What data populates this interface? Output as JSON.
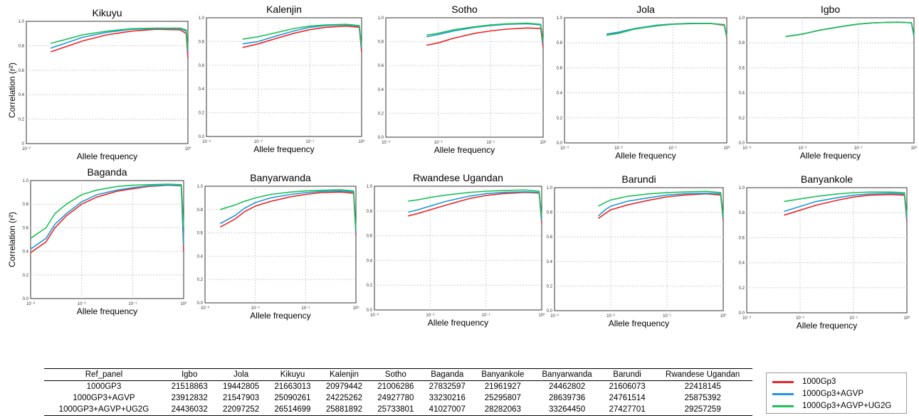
{
  "figure": {
    "y_label": "Correlation (r²)",
    "x_label": "Allele frequency"
  },
  "colors": {
    "1000Gp3": "#e8262a",
    "1000Gp3+AGVP": "#1f9ad6",
    "1000Gp3+AGVP+UG2G": "#1fbf5a"
  },
  "chart_data": [
    {
      "type": "line",
      "title": "Kikuyu",
      "xscale": "log",
      "xlim": [
        0.01,
        1
      ],
      "ylim": [
        0,
        1
      ],
      "x_ticks": [
        "10⁻²",
        "10⁰"
      ],
      "y_ticks": [
        "0",
        "0.2",
        "0.4",
        "0.6",
        "0.8",
        "1.0"
      ],
      "x": [
        0.02,
        0.03,
        0.05,
        0.1,
        0.2,
        0.4,
        0.8,
        0.95,
        1.0
      ],
      "series": [
        {
          "name": "1000Gp3",
          "values": [
            0.75,
            0.79,
            0.84,
            0.89,
            0.92,
            0.935,
            0.93,
            0.9,
            0.7
          ]
        },
        {
          "name": "1000Gp3+AGVP",
          "values": [
            0.78,
            0.82,
            0.87,
            0.91,
            0.935,
            0.94,
            0.94,
            0.92,
            0.75
          ]
        },
        {
          "name": "1000Gp3+AGVP+UG2G",
          "values": [
            0.82,
            0.85,
            0.89,
            0.92,
            0.94,
            0.945,
            0.945,
            0.93,
            0.78
          ]
        }
      ]
    },
    {
      "type": "line",
      "title": "Kalenjin",
      "xscale": "log",
      "xlim": [
        0.001,
        1
      ],
      "ylim": [
        0,
        1
      ],
      "x_ticks": [
        "10⁻³",
        "10⁻²",
        "10⁻¹",
        "10⁰"
      ],
      "y_ticks": [
        "0.0",
        "0.2",
        "0.4",
        "0.6",
        "0.8",
        "1.0"
      ],
      "x": [
        0.005,
        0.01,
        0.02,
        0.05,
        0.1,
        0.2,
        0.5,
        0.9,
        1.0
      ],
      "series": [
        {
          "name": "1000Gp3",
          "values": [
            0.75,
            0.78,
            0.82,
            0.87,
            0.9,
            0.92,
            0.93,
            0.92,
            0.71
          ]
        },
        {
          "name": "1000Gp3+AGVP",
          "values": [
            0.78,
            0.8,
            0.84,
            0.89,
            0.92,
            0.935,
            0.94,
            0.93,
            0.74
          ]
        },
        {
          "name": "1000Gp3+AGVP+UG2G",
          "values": [
            0.82,
            0.84,
            0.87,
            0.91,
            0.93,
            0.94,
            0.945,
            0.935,
            0.76
          ]
        }
      ]
    },
    {
      "type": "line",
      "title": "Sotho",
      "xscale": "log",
      "xlim": [
        0.001,
        1
      ],
      "ylim": [
        0,
        1
      ],
      "x_ticks": [
        "10⁻³",
        "10⁻²",
        "10⁻¹",
        "10⁰"
      ],
      "y_ticks": [
        "0.0",
        "0.2",
        "0.4",
        "0.6",
        "0.8",
        "1.0"
      ],
      "x": [
        0.006,
        0.01,
        0.02,
        0.05,
        0.1,
        0.2,
        0.5,
        0.9,
        1.0
      ],
      "series": [
        {
          "name": "1000Gp3",
          "values": [
            0.77,
            0.79,
            0.83,
            0.87,
            0.89,
            0.905,
            0.915,
            0.91,
            0.75
          ]
        },
        {
          "name": "1000Gp3+AGVP",
          "values": [
            0.84,
            0.86,
            0.89,
            0.92,
            0.935,
            0.945,
            0.95,
            0.94,
            0.78
          ]
        },
        {
          "name": "1000Gp3+AGVP+UG2G",
          "values": [
            0.855,
            0.87,
            0.9,
            0.925,
            0.94,
            0.95,
            0.955,
            0.945,
            0.8
          ]
        }
      ]
    },
    {
      "type": "line",
      "title": "Jola",
      "xscale": "log",
      "xlim": [
        0.001,
        1
      ],
      "ylim": [
        0,
        1
      ],
      "x_ticks": [
        "10⁻³",
        "10⁻²",
        "10⁻¹",
        "10⁰"
      ],
      "y_ticks": [
        "0.0",
        "0.2",
        "0.4",
        "0.6",
        "0.8",
        "1.0"
      ],
      "x": [
        0.006,
        0.01,
        0.02,
        0.05,
        0.1,
        0.2,
        0.5,
        0.9,
        1.0
      ],
      "series": [
        {
          "name": "1000Gp3",
          "values": [
            0.86,
            0.88,
            0.91,
            0.94,
            0.95,
            0.955,
            0.955,
            0.94,
            0.84
          ]
        },
        {
          "name": "1000Gp3+AGVP",
          "values": [
            0.87,
            0.885,
            0.915,
            0.94,
            0.95,
            0.955,
            0.955,
            0.945,
            0.85
          ]
        },
        {
          "name": "1000Gp3+AGVP+UG2G",
          "values": [
            0.86,
            0.875,
            0.91,
            0.935,
            0.948,
            0.953,
            0.955,
            0.945,
            0.85
          ]
        }
      ]
    },
    {
      "type": "line",
      "title": "Igbo",
      "xscale": "log",
      "xlim": [
        0.001,
        1
      ],
      "ylim": [
        0,
        1
      ],
      "x_ticks": [
        "10⁻³",
        "10⁻²",
        "10⁻¹",
        "10⁰"
      ],
      "y_ticks": [
        "0.0",
        "0.2",
        "0.4",
        "0.6",
        "0.8",
        "1.0"
      ],
      "x": [
        0.005,
        0.01,
        0.02,
        0.05,
        0.1,
        0.2,
        0.5,
        0.9,
        1.0
      ],
      "series": [
        {
          "name": "1000Gp3",
          "values": [
            0.85,
            0.87,
            0.9,
            0.93,
            0.95,
            0.96,
            0.965,
            0.96,
            0.85
          ]
        },
        {
          "name": "1000Gp3+AGVP",
          "values": [
            0.85,
            0.87,
            0.9,
            0.93,
            0.95,
            0.96,
            0.965,
            0.96,
            0.85
          ]
        },
        {
          "name": "1000Gp3+AGVP+UG2G",
          "values": [
            0.85,
            0.87,
            0.9,
            0.93,
            0.95,
            0.96,
            0.965,
            0.96,
            0.86
          ]
        }
      ]
    },
    {
      "type": "line",
      "title": "Baganda",
      "xscale": "log",
      "xlim": [
        0.001,
        1
      ],
      "ylim": [
        0,
        1
      ],
      "x_ticks": [
        "10⁻³",
        "10⁻²",
        "10⁻¹",
        "10⁰"
      ],
      "y_ticks": [
        "0.0",
        "0.2",
        "0.4",
        "0.6",
        "0.8",
        "1.0"
      ],
      "x": [
        0.001,
        0.002,
        0.003,
        0.005,
        0.01,
        0.02,
        0.05,
        0.1,
        0.2,
        0.5,
        0.9,
        1.0
      ],
      "series": [
        {
          "name": "1000Gp3",
          "values": [
            0.39,
            0.48,
            0.6,
            0.7,
            0.8,
            0.86,
            0.91,
            0.93,
            0.95,
            0.96,
            0.955,
            0.4
          ]
        },
        {
          "name": "1000Gp3+AGVP",
          "values": [
            0.42,
            0.51,
            0.63,
            0.72,
            0.82,
            0.88,
            0.92,
            0.94,
            0.955,
            0.962,
            0.958,
            0.45
          ]
        },
        {
          "name": "1000Gp3+AGVP+UG2G",
          "values": [
            0.51,
            0.6,
            0.72,
            0.8,
            0.88,
            0.92,
            0.95,
            0.96,
            0.965,
            0.97,
            0.965,
            0.6
          ]
        }
      ]
    },
    {
      "type": "line",
      "title": "Banyarwanda",
      "xscale": "log",
      "xlim": [
        0.001,
        1
      ],
      "ylim": [
        0,
        1
      ],
      "x_ticks": [
        "10⁻³",
        "10⁻²",
        "10⁻¹",
        "10⁰"
      ],
      "y_ticks": [
        "0.0",
        "0.2",
        "0.4",
        "0.6",
        "0.8",
        "1.0"
      ],
      "x": [
        0.002,
        0.004,
        0.006,
        0.01,
        0.02,
        0.05,
        0.1,
        0.2,
        0.5,
        0.9,
        1.0
      ],
      "series": [
        {
          "name": "1000Gp3",
          "values": [
            0.65,
            0.72,
            0.78,
            0.83,
            0.87,
            0.91,
            0.93,
            0.945,
            0.95,
            0.94,
            0.58
          ]
        },
        {
          "name": "1000Gp3+AGVP",
          "values": [
            0.68,
            0.75,
            0.81,
            0.86,
            0.9,
            0.93,
            0.945,
            0.955,
            0.96,
            0.95,
            0.6
          ]
        },
        {
          "name": "1000Gp3+AGVP+UG2G",
          "values": [
            0.8,
            0.84,
            0.87,
            0.9,
            0.93,
            0.95,
            0.96,
            0.965,
            0.97,
            0.96,
            0.62
          ]
        }
      ]
    },
    {
      "type": "line",
      "title": "Rwandese Ugandan",
      "xscale": "log",
      "xlim": [
        0.001,
        1
      ],
      "ylim": [
        0,
        1
      ],
      "x_ticks": [
        "10⁻³",
        "10⁻²",
        "10⁻¹",
        "10⁰"
      ],
      "y_ticks": [
        "0.0",
        "0.2",
        "0.4",
        "0.6",
        "0.8",
        "1.0"
      ],
      "x": [
        0.004,
        0.006,
        0.01,
        0.02,
        0.05,
        0.1,
        0.2,
        0.5,
        0.9,
        1.0
      ],
      "series": [
        {
          "name": "1000Gp3",
          "values": [
            0.76,
            0.78,
            0.81,
            0.85,
            0.9,
            0.925,
            0.94,
            0.95,
            0.945,
            0.7
          ]
        },
        {
          "name": "1000Gp3+AGVP",
          "values": [
            0.79,
            0.81,
            0.84,
            0.88,
            0.92,
            0.94,
            0.95,
            0.955,
            0.95,
            0.72
          ]
        },
        {
          "name": "1000Gp3+AGVP+UG2G",
          "values": [
            0.88,
            0.89,
            0.91,
            0.93,
            0.95,
            0.96,
            0.965,
            0.97,
            0.96,
            0.75
          ]
        }
      ]
    },
    {
      "type": "line",
      "title": "Barundi",
      "xscale": "log",
      "xlim": [
        0.001,
        1
      ],
      "ylim": [
        0,
        1
      ],
      "x_ticks": [
        "10⁻³",
        "10⁻²",
        "10⁻¹",
        "10⁰"
      ],
      "y_ticks": [
        "0.0",
        "0.2",
        "0.4",
        "0.6",
        "0.8",
        "1.0"
      ],
      "x": [
        0.006,
        0.008,
        0.01,
        0.02,
        0.05,
        0.1,
        0.2,
        0.5,
        0.9,
        1.0
      ],
      "series": [
        {
          "name": "1000Gp3",
          "values": [
            0.75,
            0.79,
            0.82,
            0.86,
            0.9,
            0.925,
            0.94,
            0.95,
            0.94,
            0.73
          ]
        },
        {
          "name": "1000Gp3+AGVP",
          "values": [
            0.77,
            0.82,
            0.85,
            0.89,
            0.92,
            0.94,
            0.95,
            0.955,
            0.95,
            0.75
          ]
        },
        {
          "name": "1000Gp3+AGVP+UG2G",
          "values": [
            0.85,
            0.88,
            0.9,
            0.93,
            0.95,
            0.96,
            0.965,
            0.97,
            0.96,
            0.77
          ]
        }
      ]
    },
    {
      "type": "line",
      "title": "Banyankole",
      "xscale": "log",
      "xlim": [
        0.001,
        1
      ],
      "ylim": [
        0,
        1
      ],
      "x_ticks": [
        "10⁻³",
        "10⁻²",
        "10⁻¹",
        "10⁰"
      ],
      "y_ticks": [
        "0.0",
        "0.2",
        "0.4",
        "0.6",
        "0.8",
        "1.0"
      ],
      "x": [
        0.005,
        0.01,
        0.02,
        0.05,
        0.1,
        0.2,
        0.5,
        0.9,
        1.0
      ],
      "series": [
        {
          "name": "1000Gp3",
          "values": [
            0.78,
            0.82,
            0.86,
            0.9,
            0.925,
            0.94,
            0.945,
            0.94,
            0.73
          ]
        },
        {
          "name": "1000Gp3+AGVP",
          "values": [
            0.81,
            0.85,
            0.89,
            0.92,
            0.94,
            0.95,
            0.955,
            0.95,
            0.75
          ]
        },
        {
          "name": "1000Gp3+AGVP+UG2G",
          "values": [
            0.89,
            0.91,
            0.93,
            0.95,
            0.96,
            0.965,
            0.965,
            0.96,
            0.78
          ]
        }
      ]
    }
  ],
  "table": {
    "headers": [
      "Ref_panel",
      "Igbo",
      "Jola",
      "Kikuyu",
      "Kalenjin",
      "Sotho",
      "Baganda",
      "Banyankole",
      "Banyarwanda",
      "Barundi",
      "Rwandese Ugandan"
    ],
    "rows": [
      [
        "1000GP3",
        "21518863",
        "19442805",
        "21663013",
        "20979442",
        "21006286",
        "27832597",
        "21961927",
        "24462802",
        "21606073",
        "22418145"
      ],
      [
        "1000GP3+AGVP",
        "23912832",
        "21547903",
        "25090261",
        "24225262",
        "24927780",
        "33230216",
        "25295807",
        "28639736",
        "24761514",
        "25875392"
      ],
      [
        "1000GP3+AGVP+UG2G",
        "24436032",
        "22097252",
        "26514699",
        "25881892",
        "25733801",
        "41027007",
        "28282063",
        "33264450",
        "27427701",
        "29257259"
      ]
    ]
  },
  "legend": {
    "entries": [
      {
        "label": "1000Gp3",
        "color": "#e8262a"
      },
      {
        "label": "1000Gp3+AGVP",
        "color": "#1f9ad6"
      },
      {
        "label": "1000Gp3+AGVP+UG2G",
        "color": "#1fbf5a"
      }
    ]
  }
}
